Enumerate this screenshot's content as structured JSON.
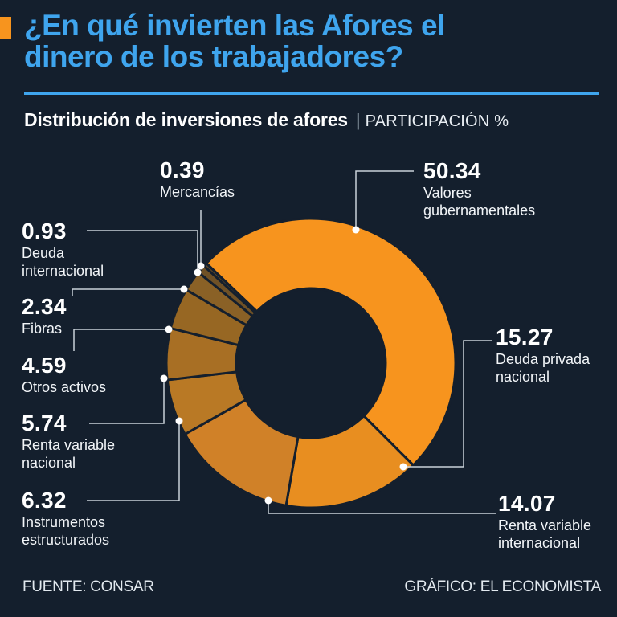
{
  "header": {
    "title_line1": "¿En qué invierten las Afores el",
    "title_line2": "dinero de los trabajadores?",
    "subtitle": "Distribución de inversiones de afores",
    "separator": "|",
    "unit": "PARTICIPACIÓN %"
  },
  "footer": {
    "source": "FUENTE: CONSAR",
    "credit": "GRÁFICO: EL ECONOMISTA"
  },
  "colors": {
    "background": "#141F2D",
    "accent_blue": "#3FA5EE",
    "accent_orange": "#F7941E",
    "leader_line": "#C9D2DA",
    "dot": "#FFFFFF"
  },
  "chart_data": {
    "type": "donut",
    "title": "Distribución de inversiones de afores",
    "unit": "PARTICIPACIÓN %",
    "start_angle_deg": -46.3,
    "direction": "clockwise",
    "inner_to_outer_ratio": 0.52,
    "segments": [
      {
        "id": "valores-gubernamentales",
        "value": 50.34,
        "value_text": "50.34",
        "display_lines": [
          "Valores",
          "gubernamentales"
        ],
        "color": "#F7941E"
      },
      {
        "id": "deuda-privada-nacional",
        "value": 15.27,
        "value_text": "15.27",
        "display_lines": [
          "Deuda privada",
          "nacional"
        ],
        "color": "#E88E20"
      },
      {
        "id": "renta-variable-internacional",
        "value": 14.07,
        "value_text": "14.07",
        "display_lines": [
          "Renta variable",
          "internacional"
        ],
        "color": "#D08128"
      },
      {
        "id": "instrumentos-estructurados",
        "value": 6.32,
        "value_text": "6.32",
        "display_lines": [
          "Instrumentos",
          "estructurados"
        ],
        "color": "#B97925"
      },
      {
        "id": "renta-variable-nacional",
        "value": 5.74,
        "value_text": "5.74",
        "display_lines": [
          "Renta variable",
          "nacional"
        ],
        "color": "#A86F24"
      },
      {
        "id": "otros-activos",
        "value": 4.59,
        "value_text": "4.59",
        "display_lines": [
          "Otros activos"
        ],
        "color": "#976723"
      },
      {
        "id": "fibras",
        "value": 2.34,
        "value_text": "2.34",
        "display_lines": [
          "Fibras"
        ],
        "color": "#8A6126"
      },
      {
        "id": "deuda-internacional",
        "value": 0.93,
        "value_text": "0.93",
        "display_lines": [
          "Deuda",
          "internacional"
        ],
        "color": "#6F5126"
      },
      {
        "id": "mercancias",
        "value": 0.39,
        "value_text": "0.39",
        "display_lines": [
          "Mercancías"
        ],
        "color": "#5A4526"
      }
    ]
  }
}
